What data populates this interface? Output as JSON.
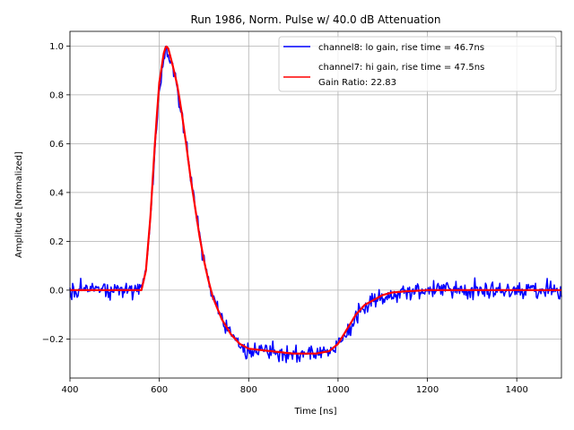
{
  "chart_data": {
    "type": "line",
    "title": "Run 1986, Norm. Pulse w/ 40.0 dB Attenuation",
    "xlabel": "Time [ns]",
    "ylabel": "Amplitude [Normalized]",
    "xlim": [
      400,
      1500
    ],
    "ylim": [
      -0.36,
      1.06
    ],
    "xticks": [
      400,
      600,
      800,
      1000,
      1200,
      1400
    ],
    "xtick_labels": [
      "400",
      "600",
      "800",
      "1000",
      "1200",
      "1400"
    ],
    "yticks": [
      -0.2,
      0.0,
      0.2,
      0.4,
      0.6,
      0.8,
      1.0
    ],
    "ytick_labels": [
      "−0.2",
      "0.0",
      "0.2",
      "0.4",
      "0.6",
      "0.8",
      "1.0"
    ],
    "grid": true,
    "legend_position": "top-right",
    "legend_extra_text": "Gain Ratio: 22.83",
    "series": [
      {
        "name": "channel8: lo gain, rise time = 46.7ns",
        "color": "#0000ff",
        "noise": 0.025,
        "x": [
          400,
          560,
          570,
          580,
          590,
          600,
          610,
          615,
          620,
          630,
          640,
          650,
          660,
          670,
          680,
          690,
          700,
          710,
          720,
          740,
          760,
          780,
          800,
          850,
          900,
          950,
          980,
          1000,
          1020,
          1040,
          1060,
          1080,
          1100,
          1120,
          1150,
          1200,
          1300,
          1400,
          1500
        ],
        "y": [
          0.0,
          0.0,
          0.08,
          0.3,
          0.58,
          0.82,
          0.95,
          0.98,
          0.97,
          0.9,
          0.82,
          0.72,
          0.6,
          0.46,
          0.34,
          0.22,
          0.12,
          0.04,
          -0.03,
          -0.12,
          -0.18,
          -0.22,
          -0.24,
          -0.25,
          -0.26,
          -0.26,
          -0.25,
          -0.22,
          -0.17,
          -0.11,
          -0.07,
          -0.05,
          -0.03,
          -0.02,
          -0.01,
          0.0,
          0.0,
          0.0,
          0.0
        ]
      },
      {
        "name": "channel7: hi gain, rise time = 47.5ns",
        "color": "#ff0000",
        "noise": 0,
        "x": [
          400,
          560,
          570,
          580,
          590,
          600,
          610,
          615,
          620,
          630,
          640,
          650,
          660,
          670,
          680,
          690,
          700,
          710,
          720,
          740,
          760,
          780,
          800,
          850,
          900,
          950,
          980,
          1000,
          1020,
          1040,
          1060,
          1080,
          1100,
          1120,
          1150,
          1200,
          1300,
          1400,
          1500
        ],
        "y": [
          0.0,
          0.0,
          0.08,
          0.3,
          0.6,
          0.85,
          0.97,
          1.0,
          0.99,
          0.92,
          0.84,
          0.73,
          0.6,
          0.46,
          0.34,
          0.22,
          0.12,
          0.04,
          -0.03,
          -0.12,
          -0.18,
          -0.22,
          -0.24,
          -0.25,
          -0.26,
          -0.26,
          -0.25,
          -0.22,
          -0.16,
          -0.1,
          -0.06,
          -0.04,
          -0.02,
          -0.01,
          -0.005,
          0.0,
          0.0,
          0.0,
          0.0
        ]
      }
    ]
  }
}
